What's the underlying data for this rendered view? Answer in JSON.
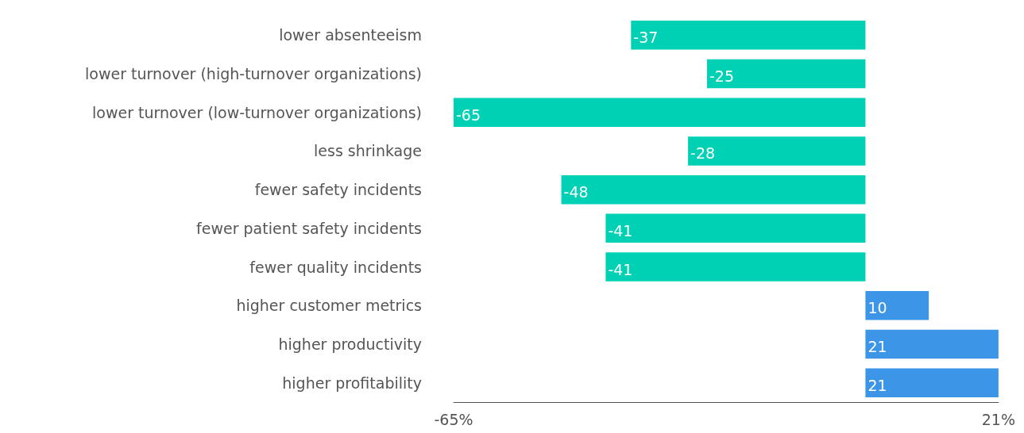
{
  "chart_data": {
    "type": "bar",
    "orientation": "horizontal",
    "categories": [
      "lower absenteeism",
      "lower turnover (high-turnover organizations)",
      "lower turnover (low-turnover organizations)",
      "less shrinkage",
      "fewer safety incidents",
      "fewer patient safety incidents",
      "fewer quality incidents",
      "higher customer metrics",
      "higher productivity",
      "higher profitability"
    ],
    "values": [
      -37,
      -25,
      -65,
      -28,
      -48,
      -41,
      -41,
      10,
      21,
      21
    ],
    "colors": [
      "#00d0b4",
      "#00d0b4",
      "#00d0b4",
      "#00d0b4",
      "#00d0b4",
      "#00d0b4",
      "#00d0b4",
      "#3d95e8",
      "#3d95e8",
      "#3d95e8"
    ],
    "xlim": [
      -65,
      21
    ],
    "xticks": [
      {
        "value": -65,
        "label": "-65%"
      },
      {
        "value": 21,
        "label": "21%"
      }
    ],
    "data_labels": true,
    "grid": false
  }
}
